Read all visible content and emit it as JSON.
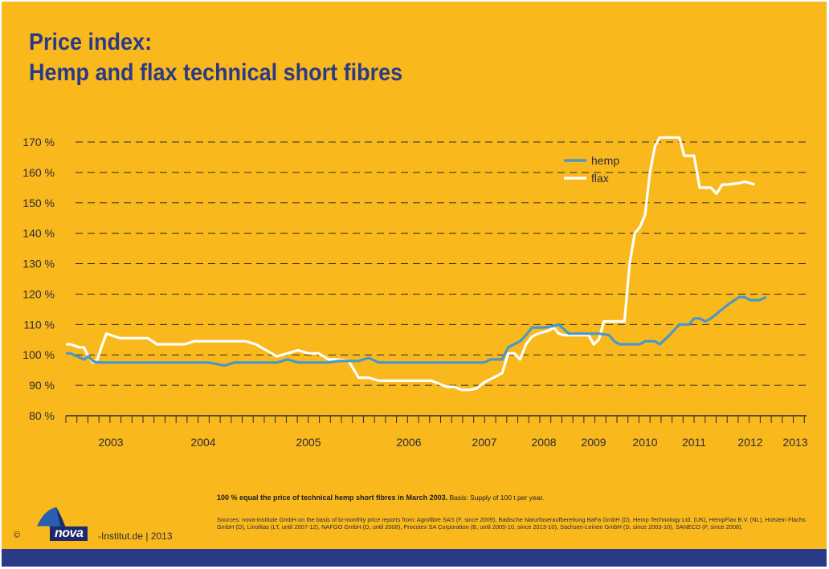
{
  "title": {
    "line1": "Price index:",
    "line2": "Hemp and flax technical short fibres"
  },
  "footnote": {
    "bold": "100 % equal the price of technical hemp short fibres in March 2003.",
    "basis": " Basis: Supply of 100 t per year."
  },
  "sources": "Sources: nova-Institute GmbH on the basis of bi-monthly price reports from: Agrofibre SAS (F, since 2009), Badische Naturfaseraufbereitung BaFa GmbH (D), Hemp Technology Ltd. (UK), HempFlax B.V. (NL), Holstein Flachs GmbH (D), Linolitas (LT, until 2007-12), NAFGO GmbH (D, until 2008), Procotex SA Corporation (B, until 2005-10, since 2013-10), Sachsen-Leinen GmbH (D, since 2003-10), SANECO (F, since 2008).",
  "branding": {
    "copyright": "©",
    "logo_word": "nova",
    "suffix": "-Institut.de | 2013"
  },
  "colors": {
    "background": "#f9b91c",
    "title": "#2b3a86",
    "hemp": "#4a97c9",
    "flax": "#ffffff",
    "footer": "#2b3a86"
  },
  "chart_data": {
    "type": "line",
    "title": "",
    "xlabel": "",
    "ylabel": "",
    "ylim": [
      80,
      170
    ],
    "yticks": [
      80,
      90,
      100,
      110,
      120,
      130,
      140,
      150,
      160,
      170
    ],
    "ytick_labels": [
      "80 %",
      "90 %",
      "100 %",
      "110 %",
      "120 %",
      "130 %",
      "140 %",
      "150 %",
      "160 %",
      "170 %"
    ],
    "xlim": [
      2002.5,
      2013.7
    ],
    "grid": "horizontal dashed",
    "legend_position": "top-right",
    "x_categories": [
      "2003",
      "2004",
      "2005",
      "2006",
      "2007",
      "2008",
      "2009",
      "2010",
      "2011",
      "2012",
      "2013"
    ],
    "series": [
      {
        "name": "hemp",
        "color": "#4a97c9",
        "points": [
          [
            2002.5,
            100.5
          ],
          [
            2002.6,
            100.5
          ],
          [
            2002.9,
            98.5
          ],
          [
            2003.0,
            99.5
          ],
          [
            2003.1,
            98.0
          ],
          [
            2003.2,
            97.5
          ],
          [
            2003.4,
            97.5
          ],
          [
            2004.0,
            97.5
          ],
          [
            2004.55,
            97.5
          ],
          [
            2004.7,
            96.5
          ],
          [
            2004.8,
            97.5
          ],
          [
            2005.2,
            97.5
          ],
          [
            2005.3,
            98.5
          ],
          [
            2005.4,
            97.5
          ],
          [
            2005.5,
            97.5
          ],
          [
            2005.7,
            97.5
          ],
          [
            2005.8,
            98.0
          ],
          [
            2006.0,
            98.0
          ],
          [
            2006.1,
            99.0
          ],
          [
            2006.2,
            97.5
          ],
          [
            2006.8,
            97.5
          ],
          [
            2007.3,
            97.5
          ],
          [
            2007.5,
            97.5
          ],
          [
            2007.6,
            98.5
          ],
          [
            2007.8,
            98.5
          ],
          [
            2007.9,
            102.5
          ],
          [
            2008.1,
            104.5
          ],
          [
            2008.2,
            106.5
          ],
          [
            2008.3,
            109.0
          ],
          [
            2008.5,
            109.0
          ],
          [
            2008.7,
            109.5
          ],
          [
            2008.8,
            110.0
          ],
          [
            2009.0,
            107.0
          ],
          [
            2009.2,
            107.0
          ],
          [
            2009.4,
            107.0
          ],
          [
            2009.6,
            107.0
          ],
          [
            2009.8,
            106.5
          ],
          [
            2009.9,
            104.5
          ],
          [
            2010.0,
            103.5
          ],
          [
            2010.4,
            103.5
          ],
          [
            2010.5,
            104.5
          ],
          [
            2010.7,
            104.5
          ],
          [
            2010.8,
            103.5
          ],
          [
            2010.9,
            105.0
          ],
          [
            2011.0,
            106.5
          ],
          [
            2011.2,
            110.0
          ],
          [
            2011.3,
            110.0
          ],
          [
            2011.4,
            110.0
          ],
          [
            2011.5,
            112.0
          ],
          [
            2011.6,
            112.0
          ],
          [
            2011.7,
            111.0
          ],
          [
            2011.8,
            112.0
          ],
          [
            2011.9,
            113.5
          ],
          [
            2012.0,
            115.0
          ],
          [
            2012.1,
            116.5
          ],
          [
            2012.3,
            119.0
          ],
          [
            2012.4,
            119.0
          ],
          [
            2012.5,
            118.0
          ],
          [
            2012.6,
            118.0
          ],
          [
            2012.7,
            118.0
          ],
          [
            2012.85,
            119.0
          ]
        ]
      },
      {
        "name": "flax",
        "color": "#ffffff",
        "points": [
          [
            2002.5,
            103.5
          ],
          [
            2002.6,
            103.5
          ],
          [
            2002.8,
            102.5
          ],
          [
            2002.9,
            102.5
          ],
          [
            2003.0,
            99.5
          ],
          [
            2003.1,
            97.5
          ],
          [
            2003.2,
            98.5
          ],
          [
            2003.3,
            103.0
          ],
          [
            2003.4,
            107.0
          ],
          [
            2003.5,
            106.5
          ],
          [
            2003.6,
            105.5
          ],
          [
            2003.8,
            105.5
          ],
          [
            2003.9,
            105.5
          ],
          [
            2004.0,
            103.5
          ],
          [
            2004.3,
            103.5
          ],
          [
            2004.4,
            104.5
          ],
          [
            2004.8,
            104.5
          ],
          [
            2004.9,
            104.5
          ],
          [
            2005.0,
            103.5
          ],
          [
            2005.1,
            101.5
          ],
          [
            2005.2,
            99.5
          ],
          [
            2005.3,
            100.5
          ],
          [
            2005.4,
            101.5
          ],
          [
            2005.5,
            100.5
          ],
          [
            2005.6,
            100.5
          ],
          [
            2005.7,
            98.5
          ],
          [
            2005.8,
            98.5
          ],
          [
            2005.9,
            98.0
          ],
          [
            2006.0,
            92.5
          ],
          [
            2006.1,
            92.5
          ],
          [
            2006.2,
            91.5
          ],
          [
            2006.6,
            91.5
          ],
          [
            2006.8,
            91.5
          ],
          [
            2006.9,
            90.5
          ],
          [
            2007.0,
            89.5
          ],
          [
            2007.1,
            89.5
          ],
          [
            2007.2,
            88.5
          ],
          [
            2007.3,
            88.5
          ],
          [
            2007.4,
            89.0
          ],
          [
            2007.5,
            91.0
          ],
          [
            2007.6,
            92.0
          ],
          [
            2007.8,
            94.0
          ],
          [
            2007.9,
            100.5
          ],
          [
            2008.0,
            100.5
          ],
          [
            2008.1,
            98.5
          ],
          [
            2008.2,
            103.5
          ],
          [
            2008.3,
            106.0
          ],
          [
            2008.4,
            107.0
          ],
          [
            2008.6,
            108.0
          ],
          [
            2008.7,
            109.0
          ],
          [
            2008.8,
            107.0
          ],
          [
            2008.9,
            106.5
          ],
          [
            2009.0,
            106.5
          ],
          [
            2009.4,
            106.5
          ],
          [
            2009.5,
            103.5
          ],
          [
            2009.6,
            105.0
          ],
          [
            2009.7,
            111.0
          ],
          [
            2009.9,
            111.0
          ],
          [
            2010.0,
            111.0
          ],
          [
            2010.1,
            111.0
          ],
          [
            2010.2,
            130.0
          ],
          [
            2010.3,
            140.0
          ],
          [
            2010.4,
            142.0
          ],
          [
            2010.5,
            146.0
          ],
          [
            2010.6,
            160.0
          ],
          [
            2010.7,
            168.5
          ],
          [
            2010.8,
            171.5
          ],
          [
            2011.0,
            171.5
          ],
          [
            2011.2,
            171.5
          ],
          [
            2011.3,
            165.5
          ],
          [
            2011.5,
            165.5
          ],
          [
            2011.6,
            155.0
          ],
          [
            2011.7,
            155.0
          ],
          [
            2011.8,
            155.0
          ],
          [
            2011.9,
            153.0
          ],
          [
            2012.0,
            156.0
          ],
          [
            2012.1,
            156.0
          ],
          [
            2012.3,
            156.5
          ],
          [
            2012.4,
            157.0
          ],
          [
            2012.6,
            156.0
          ]
        ]
      }
    ]
  }
}
